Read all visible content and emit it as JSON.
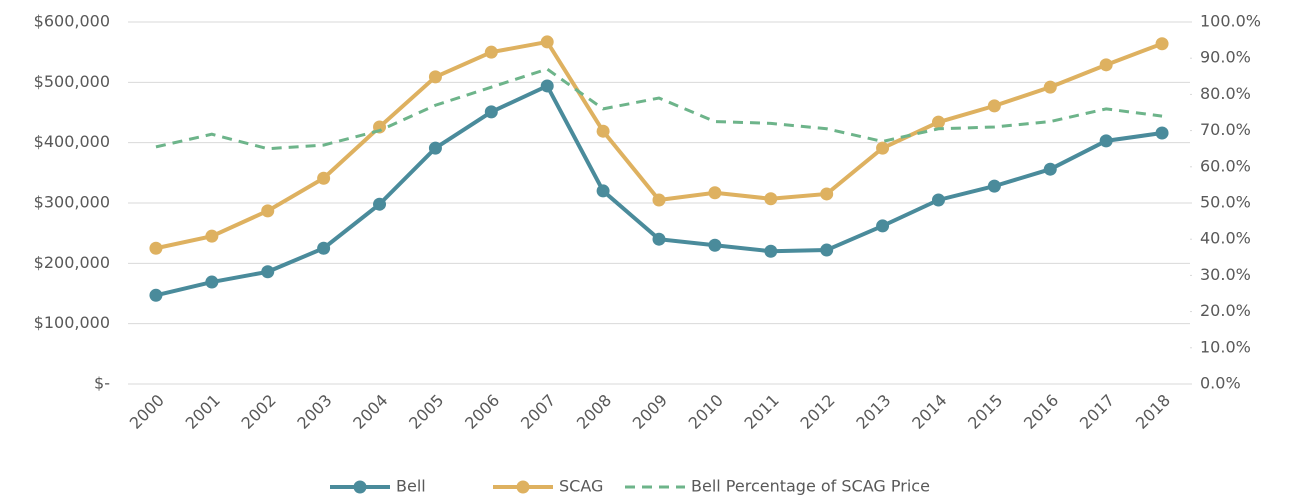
{
  "chart_data": {
    "type": "line",
    "categories": [
      "2000",
      "2001",
      "2002",
      "2003",
      "2004",
      "2005",
      "2006",
      "2007",
      "2008",
      "2009",
      "2010",
      "2011",
      "2012",
      "2013",
      "2014",
      "2015",
      "2016",
      "2017",
      "2018"
    ],
    "series": [
      {
        "name": "Bell",
        "color": "#4a8b9b",
        "style": "solid-marker",
        "values": [
          147000,
          169000,
          186000,
          225000,
          298000,
          391000,
          451000,
          494000,
          320000,
          240000,
          230000,
          220000,
          222000,
          262000,
          305000,
          328000,
          356000,
          403000,
          416000
        ]
      },
      {
        "name": "SCAG",
        "color": "#deb160",
        "style": "solid-marker",
        "values": [
          225000,
          245000,
          287000,
          341000,
          426000,
          509000,
          550000,
          567000,
          419000,
          305000,
          317000,
          307000,
          315000,
          391000,
          434000,
          461000,
          492000,
          529000,
          564000
        ]
      },
      {
        "name": "Bell Percentage of SCAG Price",
        "color": "#6db48a",
        "style": "dashed",
        "axis": "y2",
        "values": [
          65.5,
          69,
          65,
          66,
          70,
          77,
          82,
          87,
          76,
          79,
          72.5,
          72,
          70.5,
          67,
          70.5,
          71,
          72.5,
          76,
          74
        ]
      }
    ],
    "ylim": [
      0,
      600000
    ],
    "yticks": [
      {
        "value": 0,
        "label": "$-"
      },
      {
        "value": 100000,
        "label": "$100,000"
      },
      {
        "value": 200000,
        "label": "$200,000"
      },
      {
        "value": 300000,
        "label": "$300,000"
      },
      {
        "value": 400000,
        "label": "$400,000"
      },
      {
        "value": 500000,
        "label": "$500,000"
      },
      {
        "value": 600000,
        "label": "$600,000"
      }
    ],
    "y2lim": [
      0,
      100
    ],
    "y2ticks": [
      {
        "value": 0,
        "label": "0.0%"
      },
      {
        "value": 10,
        "label": "10.0%"
      },
      {
        "value": 20,
        "label": "20.0%"
      },
      {
        "value": 30,
        "label": "30.0%"
      },
      {
        "value": 40,
        "label": "40.0%"
      },
      {
        "value": 50,
        "label": "50.0%"
      },
      {
        "value": 60,
        "label": "60.0%"
      },
      {
        "value": 70,
        "label": "70.0%"
      },
      {
        "value": 80,
        "label": "80.0%"
      },
      {
        "value": 90,
        "label": "90.0%"
      },
      {
        "value": 100,
        "label": "100.0%"
      }
    ],
    "grid": true,
    "legend": "bottom"
  }
}
